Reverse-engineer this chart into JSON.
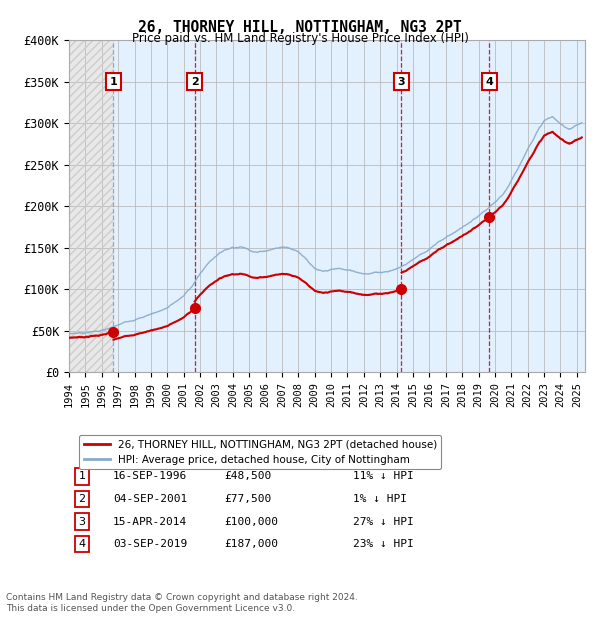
{
  "title": "26, THORNEY HILL, NOTTINGHAM, NG3 2PT",
  "subtitle": "Price paid vs. HM Land Registry's House Price Index (HPI)",
  "legend_entries": [
    "26, THORNEY HILL, NOTTINGHAM, NG3 2PT (detached house)",
    "HPI: Average price, detached house, City of Nottingham"
  ],
  "sales": [
    {
      "num": 1,
      "date": "16-SEP-1996",
      "price": 48500,
      "pct": "11% ↓ HPI",
      "year": 1996.71
    },
    {
      "num": 2,
      "date": "04-SEP-2001",
      "price": 77500,
      "pct": "1% ↓ HPI",
      "year": 2001.67
    },
    {
      "num": 3,
      "date": "15-APR-2014",
      "price": 100000,
      "pct": "27% ↓ HPI",
      "year": 2014.29
    },
    {
      "num": 4,
      "date": "03-SEP-2019",
      "price": 187000,
      "pct": "23% ↓ HPI",
      "year": 2019.67
    }
  ],
  "ylabel_ticks": [
    "£0",
    "£50K",
    "£100K",
    "£150K",
    "£200K",
    "£250K",
    "£300K",
    "£350K",
    "£400K"
  ],
  "ytick_values": [
    0,
    50000,
    100000,
    150000,
    200000,
    250000,
    300000,
    350000,
    400000
  ],
  "xmin": 1994.0,
  "xmax": 2025.5,
  "ymin": 0,
  "ymax": 400000,
  "red_color": "#cc0000",
  "blue_color": "#88aacc",
  "background_color": "#ffffff",
  "grid_color": "#bbbbbb",
  "shade_color": "#ddeeff",
  "footer": "Contains HM Land Registry data © Crown copyright and database right 2024.\nThis data is licensed under the Open Government Licence v3.0.",
  "hpi_years": [
    1994.0,
    1994.5,
    1995.0,
    1995.5,
    1996.0,
    1996.5,
    1997.0,
    1997.5,
    1998.0,
    1998.5,
    1999.0,
    1999.5,
    2000.0,
    2000.5,
    2001.0,
    2001.5,
    2002.0,
    2002.5,
    2003.0,
    2003.5,
    2004.0,
    2004.5,
    2005.0,
    2005.5,
    2006.0,
    2006.5,
    2007.0,
    2007.5,
    2008.0,
    2008.5,
    2009.0,
    2009.5,
    2010.0,
    2010.5,
    2011.0,
    2011.5,
    2012.0,
    2012.5,
    2013.0,
    2013.5,
    2014.0,
    2014.5,
    2015.0,
    2015.5,
    2016.0,
    2016.5,
    2017.0,
    2017.5,
    2018.0,
    2018.5,
    2019.0,
    2019.5,
    2020.0,
    2020.5,
    2021.0,
    2021.5,
    2022.0,
    2022.5,
    2023.0,
    2023.5,
    2024.0,
    2024.5,
    2025.0,
    2025.3
  ],
  "hpi_values": [
    46000,
    47000,
    48000,
    49500,
    51000,
    53000,
    56000,
    60000,
    64000,
    67000,
    71000,
    75000,
    79000,
    86000,
    93000,
    105000,
    120000,
    133000,
    143000,
    150000,
    154000,
    155000,
    152000,
    150000,
    152000,
    155000,
    157000,
    157000,
    153000,
    145000,
    133000,
    128000,
    130000,
    131000,
    129000,
    127000,
    126000,
    127000,
    128000,
    130000,
    133000,
    138000,
    145000,
    152000,
    158000,
    165000,
    172000,
    178000,
    184000,
    190000,
    196000,
    203000,
    210000,
    220000,
    235000,
    255000,
    275000,
    295000,
    310000,
    315000,
    305000,
    300000,
    305000,
    308000
  ]
}
